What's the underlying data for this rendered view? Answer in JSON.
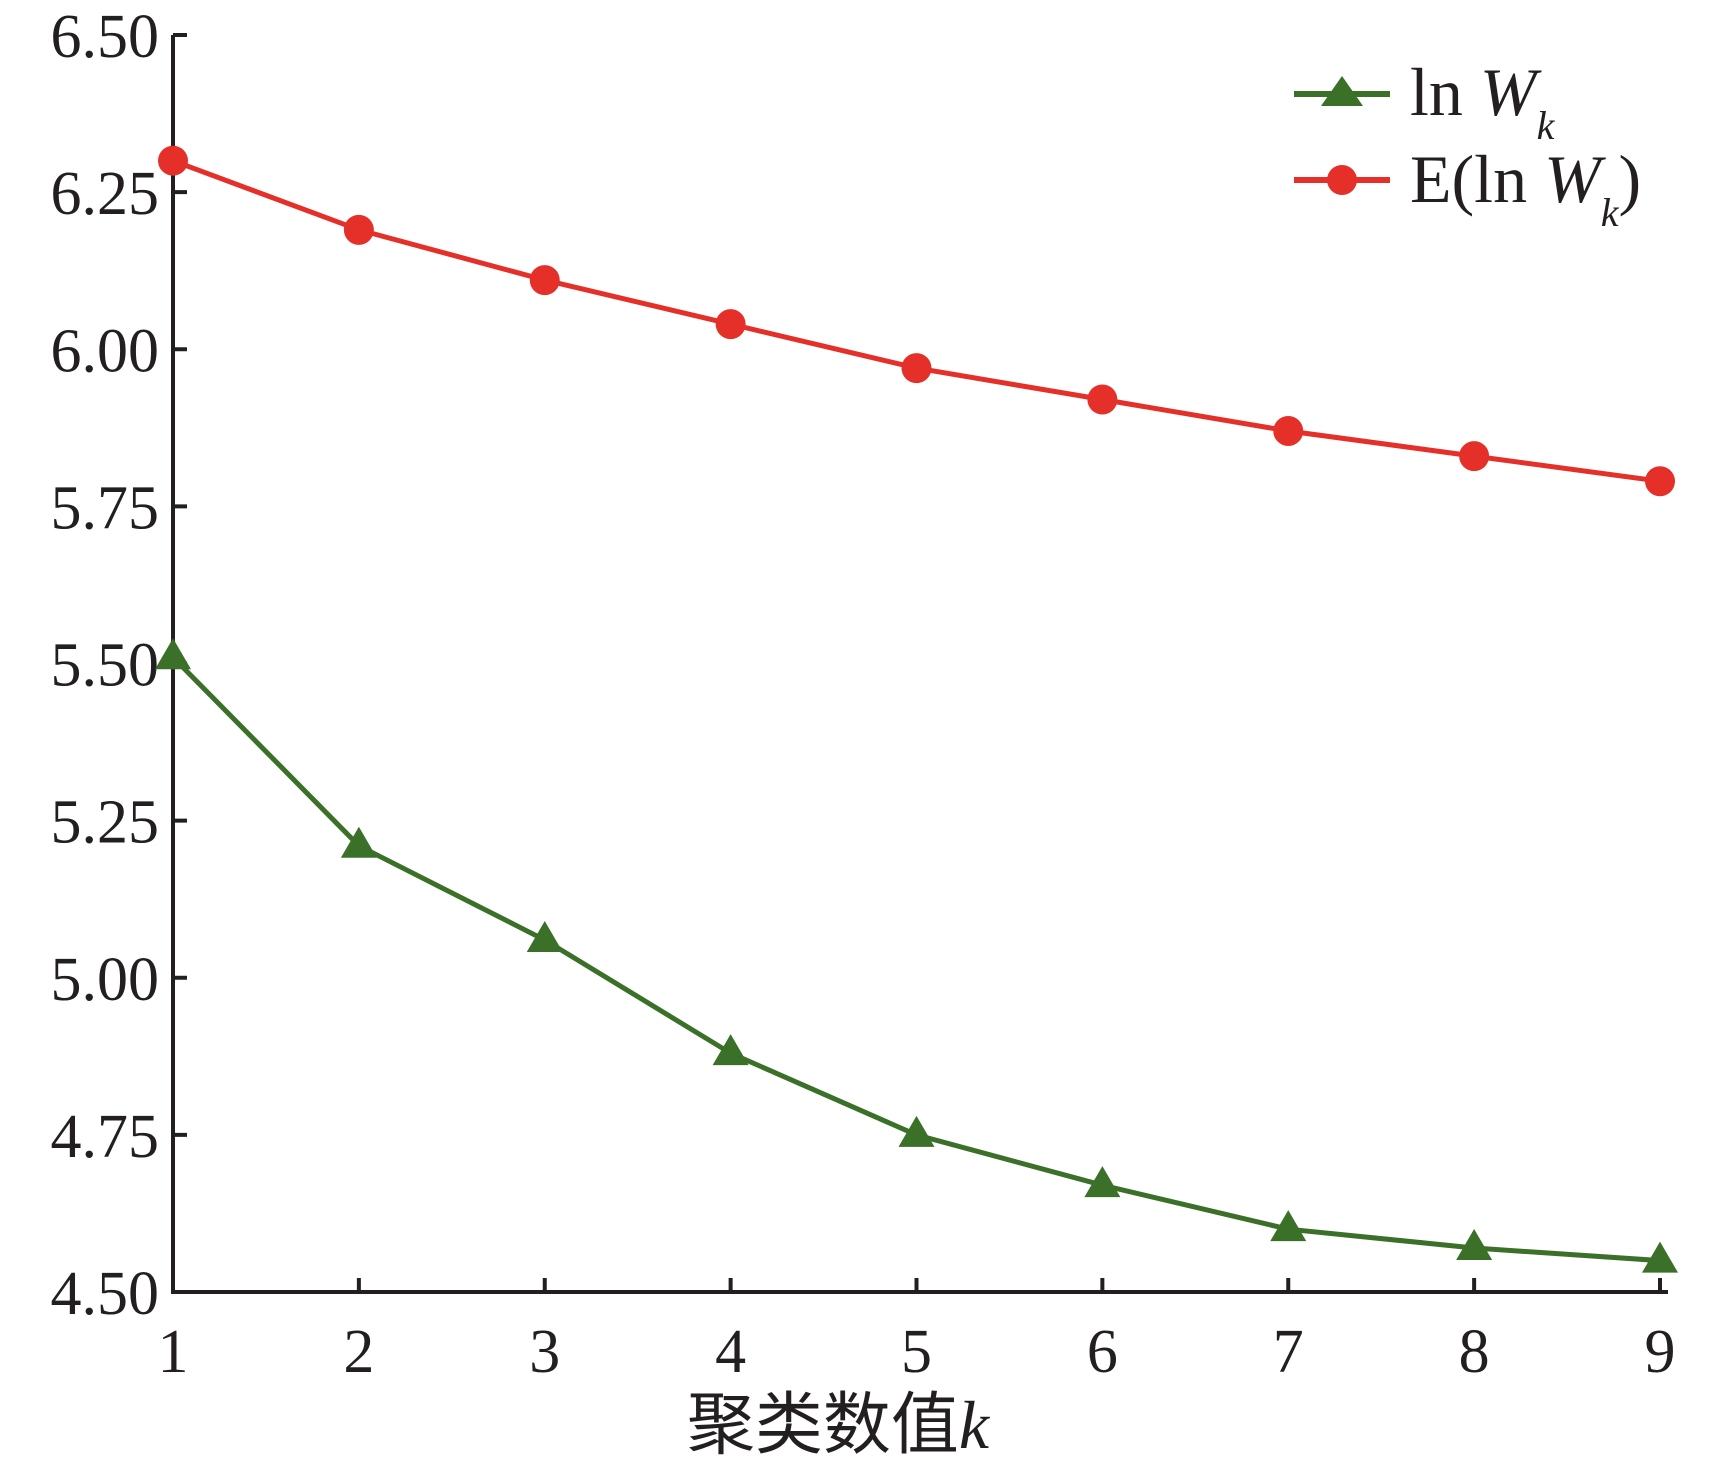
{
  "chart_data": {
    "type": "line",
    "x": [
      1,
      2,
      3,
      4,
      5,
      6,
      7,
      8,
      9
    ],
    "xlabel_text": "聚类数值",
    "xlabel_var": "k",
    "ylabel": "",
    "xlim": [
      1,
      9
    ],
    "ylim": [
      4.5,
      6.5
    ],
    "yticks": [
      "4.50",
      "4.75",
      "5.00",
      "5.25",
      "5.50",
      "5.75",
      "6.00",
      "6.25",
      "6.50"
    ],
    "xticks": [
      "1",
      "2",
      "3",
      "4",
      "5",
      "6",
      "7",
      "8",
      "9"
    ],
    "grid": false,
    "legend_position": "top-right",
    "series": [
      {
        "name_main": "ln ",
        "name_var": "W",
        "name_sub": "k",
        "name_close": "",
        "marker": "triangle",
        "color": "#3a7028",
        "values": [
          5.51,
          5.21,
          5.06,
          4.88,
          4.75,
          4.67,
          4.6,
          4.57,
          4.55
        ]
      },
      {
        "name_main": "E(ln ",
        "name_var": "W",
        "name_sub": "k",
        "name_close": ")",
        "marker": "circle",
        "color": "#e5302a",
        "values": [
          6.3,
          6.19,
          6.11,
          6.04,
          5.97,
          5.92,
          5.87,
          5.83,
          5.79
        ]
      }
    ]
  }
}
